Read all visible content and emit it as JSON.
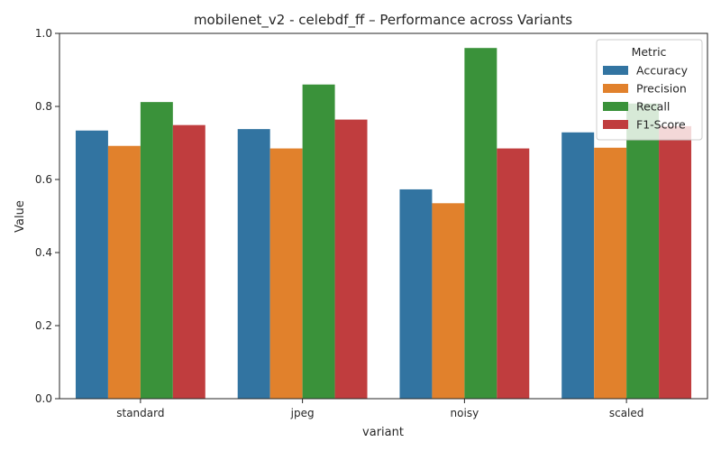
{
  "chart_data": {
    "type": "bar",
    "title": "mobilenet_v2 - celebdf_ff – Performance across Variants",
    "xlabel": "variant",
    "ylabel": "Value",
    "ylim": [
      0,
      1
    ],
    "yticks": [
      "0.0",
      "0.2",
      "0.4",
      "0.6",
      "0.8",
      "1.0"
    ],
    "categories": [
      "standard",
      "jpeg",
      "noisy",
      "scaled"
    ],
    "legend": {
      "title": "Metric",
      "position": "top-right"
    },
    "series": [
      {
        "name": "Accuracy",
        "color": "#3274a1",
        "values": [
          0.734,
          0.738,
          0.573,
          0.729
        ]
      },
      {
        "name": "Precision",
        "color": "#e1812c",
        "values": [
          0.692,
          0.685,
          0.535,
          0.687
        ]
      },
      {
        "name": "Recall",
        "color": "#3a923a",
        "values": [
          0.812,
          0.86,
          0.96,
          0.808
        ]
      },
      {
        "name": "F1-Score",
        "color": "#c03d3e",
        "values": [
          0.749,
          0.764,
          0.685,
          0.746
        ]
      }
    ]
  }
}
